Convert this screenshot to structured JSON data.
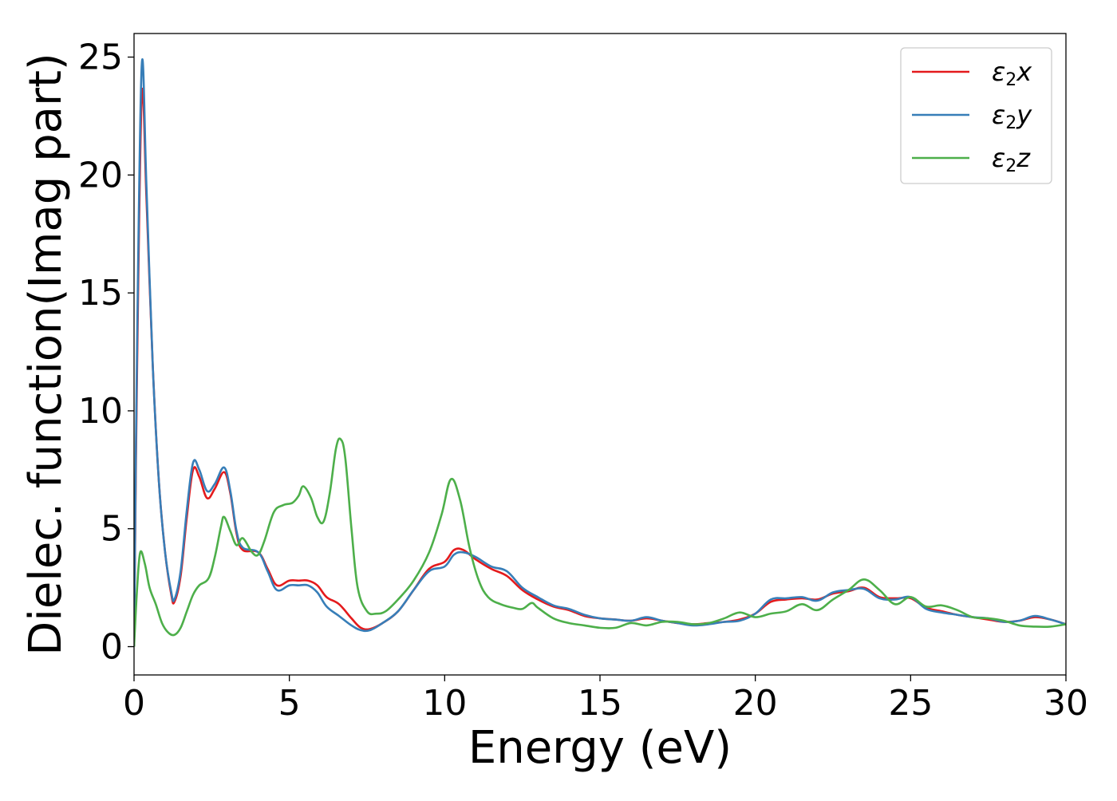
{
  "chart_data": {
    "type": "line",
    "title": "",
    "xlabel": "Energy (eV)",
    "ylabel": "Dielec. function(Imag part)",
    "xlim": [
      0,
      30
    ],
    "ylim": [
      -1.2,
      26
    ],
    "xticks": [
      0,
      5,
      10,
      15,
      20,
      25,
      30
    ],
    "yticks": [
      0,
      5,
      10,
      15,
      20,
      25
    ],
    "grid": false,
    "legend_position": "top-right",
    "series": [
      {
        "name": "ε2x",
        "legend_base": "ε",
        "legend_sub": "2",
        "legend_var": "x",
        "color": "#e41a1c",
        "x": [
          0,
          0.1,
          0.25,
          0.4,
          0.6,
          0.8,
          1.0,
          1.2,
          1.3,
          1.5,
          1.7,
          1.9,
          2.1,
          2.35,
          2.6,
          2.9,
          3.1,
          3.3,
          3.5,
          4.0,
          4.3,
          4.6,
          5.0,
          5.3,
          5.6,
          5.9,
          6.2,
          6.6,
          7.0,
          7.3,
          7.6,
          8.0,
          8.5,
          9.0,
          9.5,
          10.0,
          10.3,
          10.6,
          11.0,
          11.5,
          12.0,
          12.5,
          13.0,
          13.5,
          14.0,
          14.5,
          15.0,
          15.5,
          16.0,
          16.5,
          17.0,
          17.5,
          18.0,
          18.5,
          19.0,
          19.5,
          20.0,
          20.5,
          21.0,
          21.5,
          22.0,
          22.5,
          23.0,
          23.5,
          24.0,
          24.5,
          25.0,
          25.5,
          26.0,
          26.5,
          27.0,
          27.5,
          28.0,
          28.5,
          29.0,
          29.5,
          30.0
        ],
        "values": [
          0,
          12,
          23.4,
          19,
          12,
          7,
          4,
          2.2,
          1.9,
          3,
          5.5,
          7.5,
          7.2,
          6.3,
          6.7,
          7.4,
          6.5,
          4.8,
          4.1,
          4.0,
          3.3,
          2.6,
          2.8,
          2.8,
          2.8,
          2.6,
          2.1,
          1.8,
          1.2,
          0.8,
          0.75,
          1.0,
          1.5,
          2.4,
          3.3,
          3.6,
          4.1,
          4.1,
          3.7,
          3.3,
          3.0,
          2.4,
          2.0,
          1.7,
          1.55,
          1.3,
          1.2,
          1.15,
          1.1,
          1.2,
          1.1,
          1.0,
          0.95,
          1.0,
          1.05,
          1.15,
          1.4,
          1.9,
          2.0,
          2.05,
          2.0,
          2.25,
          2.35,
          2.5,
          2.1,
          2.05,
          2.05,
          1.65,
          1.5,
          1.35,
          1.25,
          1.15,
          1.05,
          1.1,
          1.25,
          1.15,
          0.95
        ]
      },
      {
        "name": "ε2y",
        "legend_base": "ε",
        "legend_sub": "2",
        "legend_var": "y",
        "color": "#377eb8",
        "x": [
          0,
          0.1,
          0.25,
          0.4,
          0.6,
          0.8,
          1.0,
          1.2,
          1.3,
          1.5,
          1.7,
          1.9,
          2.1,
          2.35,
          2.6,
          2.9,
          3.1,
          3.3,
          3.5,
          4.0,
          4.3,
          4.6,
          5.0,
          5.3,
          5.6,
          5.9,
          6.2,
          6.6,
          7.0,
          7.3,
          7.6,
          8.0,
          8.5,
          9.0,
          9.5,
          10.0,
          10.3,
          10.6,
          11.0,
          11.5,
          12.0,
          12.5,
          13.0,
          13.5,
          14.0,
          14.5,
          15.0,
          15.5,
          16.0,
          16.5,
          17.0,
          17.5,
          18.0,
          18.5,
          19.0,
          19.5,
          20.0,
          20.5,
          21.0,
          21.5,
          22.0,
          22.5,
          23.0,
          23.5,
          24.0,
          24.5,
          25.0,
          25.5,
          26.0,
          26.5,
          27.0,
          27.5,
          28.0,
          28.5,
          29.0,
          29.5,
          30.0
        ],
        "values": [
          0,
          13,
          24.7,
          19.5,
          12,
          7,
          4,
          2.3,
          2.0,
          3.2,
          5.8,
          7.8,
          7.5,
          6.6,
          6.9,
          7.6,
          6.6,
          4.9,
          4.2,
          4.0,
          3.2,
          2.4,
          2.6,
          2.6,
          2.6,
          2.3,
          1.7,
          1.3,
          0.9,
          0.7,
          0.7,
          1.0,
          1.5,
          2.4,
          3.2,
          3.4,
          3.9,
          4.0,
          3.8,
          3.4,
          3.2,
          2.5,
          2.1,
          1.75,
          1.6,
          1.35,
          1.2,
          1.15,
          1.1,
          1.25,
          1.1,
          1.0,
          0.9,
          0.95,
          1.05,
          1.1,
          1.4,
          2.0,
          2.05,
          2.1,
          1.95,
          2.3,
          2.4,
          2.45,
          2.05,
          2.0,
          2.1,
          1.6,
          1.45,
          1.35,
          1.25,
          1.2,
          1.05,
          1.1,
          1.3,
          1.15,
          0.95
        ]
      },
      {
        "name": "ε2z",
        "legend_base": "ε",
        "legend_sub": "2",
        "legend_var": "z",
        "color": "#4daf4a",
        "x": [
          0,
          0.1,
          0.2,
          0.35,
          0.5,
          0.7,
          0.9,
          1.1,
          1.3,
          1.5,
          1.7,
          1.9,
          2.1,
          2.4,
          2.6,
          2.8,
          2.9,
          3.1,
          3.3,
          3.5,
          3.8,
          4.0,
          4.2,
          4.5,
          4.8,
          5.1,
          5.3,
          5.45,
          5.7,
          5.9,
          6.1,
          6.3,
          6.5,
          6.65,
          6.8,
          7.0,
          7.2,
          7.5,
          7.8,
          8.1,
          8.5,
          9.0,
          9.5,
          9.9,
          10.2,
          10.5,
          10.8,
          11.1,
          11.4,
          11.8,
          12.2,
          12.5,
          12.8,
          13.0,
          13.5,
          14.0,
          14.5,
          15.0,
          15.5,
          16.0,
          16.5,
          17.0,
          17.5,
          18.0,
          18.5,
          19.0,
          19.5,
          20.0,
          20.5,
          21.0,
          21.5,
          22.0,
          22.5,
          23.0,
          23.5,
          24.0,
          24.5,
          25.0,
          25.5,
          26.0,
          26.5,
          27.0,
          27.5,
          28.0,
          28.5,
          29.0,
          29.5,
          30.0
        ],
        "values": [
          0,
          2.5,
          4.0,
          3.5,
          2.5,
          1.8,
          1.0,
          0.6,
          0.5,
          0.8,
          1.5,
          2.2,
          2.6,
          2.9,
          3.8,
          5.1,
          5.5,
          4.9,
          4.3,
          4.6,
          4.0,
          3.9,
          4.5,
          5.7,
          6.0,
          6.1,
          6.4,
          6.8,
          6.3,
          5.5,
          5.3,
          6.5,
          8.4,
          8.8,
          8.0,
          5.0,
          2.5,
          1.5,
          1.4,
          1.5,
          2.0,
          2.8,
          4.0,
          5.6,
          7.1,
          6.2,
          4.2,
          2.8,
          2.1,
          1.8,
          1.65,
          1.6,
          1.85,
          1.65,
          1.2,
          1.0,
          0.9,
          0.8,
          0.8,
          1.0,
          0.9,
          1.05,
          1.05,
          0.95,
          1.0,
          1.2,
          1.45,
          1.25,
          1.4,
          1.5,
          1.8,
          1.55,
          2.0,
          2.4,
          2.85,
          2.4,
          1.8,
          2.1,
          1.7,
          1.75,
          1.55,
          1.25,
          1.2,
          1.1,
          0.9,
          0.85,
          0.85,
          0.95
        ]
      }
    ]
  }
}
